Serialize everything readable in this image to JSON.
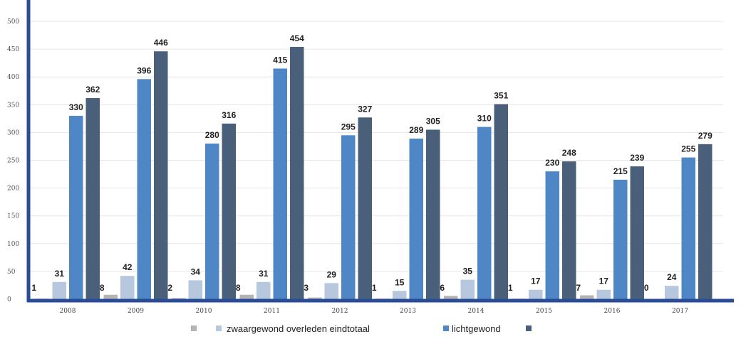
{
  "chart_data": {
    "type": "bar",
    "categories": [
      "2008",
      "2009",
      "2010",
      "2011",
      "2012",
      "2013",
      "2014",
      "2015",
      "2016",
      "2017"
    ],
    "ylim": [
      0,
      500
    ],
    "yticks": [
      0,
      50,
      100,
      150,
      200,
      250,
      300,
      350,
      400,
      450,
      500
    ],
    "grid": true,
    "legend_position": "bottom",
    "series": [
      {
        "name": "overleden",
        "color": "#b4b4b4",
        "values": [
          1,
          8,
          2,
          8,
          3,
          1,
          6,
          1,
          7,
          0
        ]
      },
      {
        "name": "zwaargewond",
        "color": "#b7c8de",
        "values": [
          31,
          42,
          34,
          31,
          29,
          15,
          35,
          17,
          17,
          24
        ]
      },
      {
        "name": "lichtgewond",
        "color": "#4f86c6",
        "values": [
          330,
          396,
          280,
          415,
          295,
          289,
          310,
          230,
          215,
          255
        ]
      },
      {
        "name": "eindtotaal",
        "color": "#4a5f7a",
        "values": [
          362,
          446,
          316,
          454,
          327,
          305,
          351,
          248,
          239,
          279
        ]
      }
    ],
    "legend_text": "zwaargewond overleden eindtotaal",
    "legend_text_2": "lichtgewond"
  },
  "colors": {
    "axis": "#2a4c97",
    "grid": "#e6e6e6"
  }
}
